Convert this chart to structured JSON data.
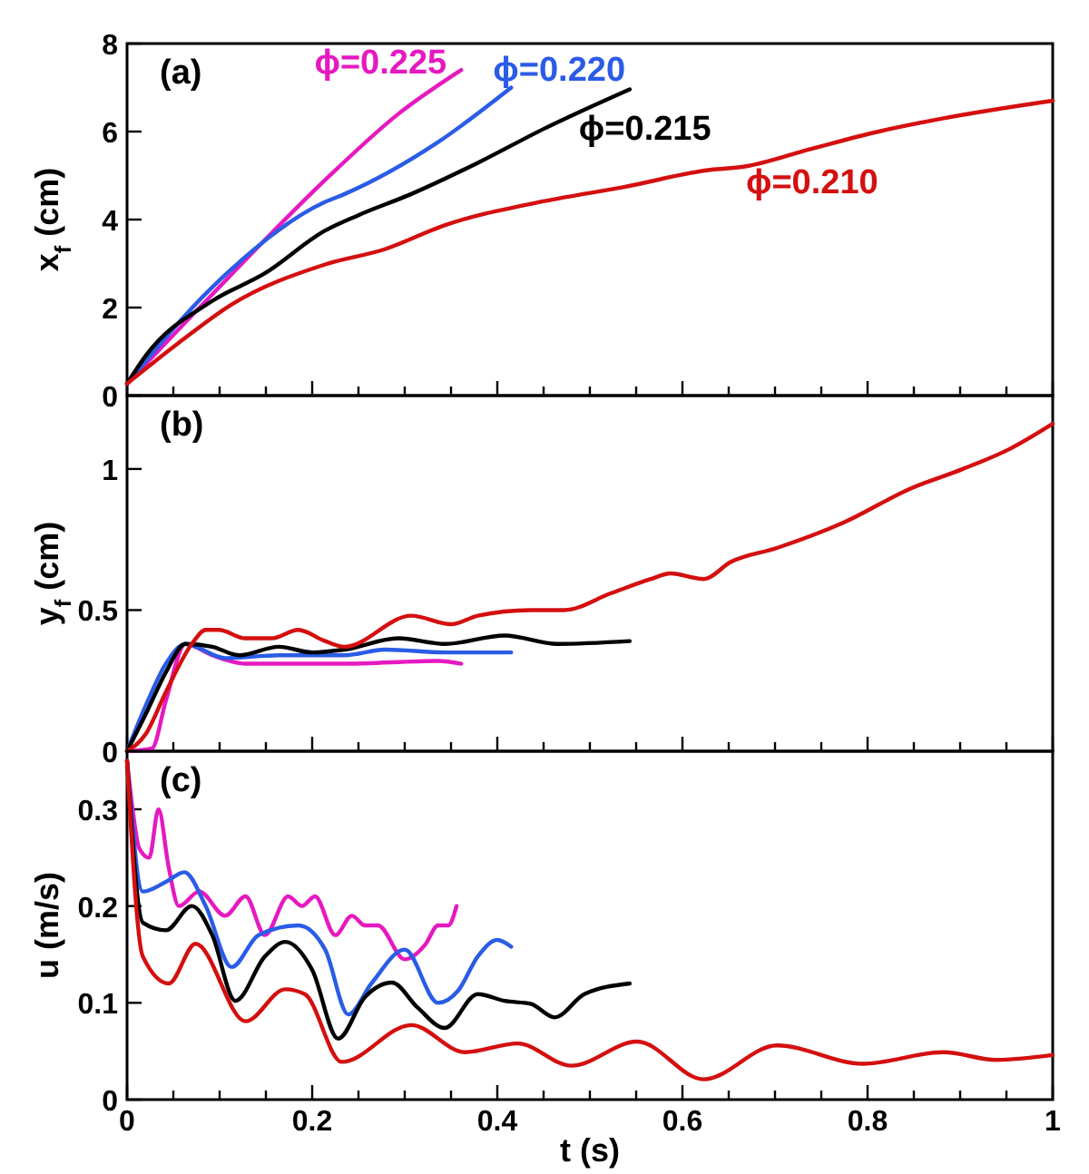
{
  "chart_data": [
    {
      "type": "line",
      "ylabel": "x$_{f}$ (cm)",
      "annotations": [
        "(a)"
      ],
      "xlim": [
        0,
        1
      ],
      "ylim": [
        0,
        8
      ],
      "yticks": [
        0,
        2,
        4,
        6,
        8
      ],
      "xticks": [
        0,
        {
          "value": 0.05,
          "label": null
        },
        {
          "value": 0.1,
          "label": null
        },
        {
          "value": 0.15,
          "label": null
        },
        0.2,
        {
          "value": 0.25,
          "label": null
        },
        {
          "value": 0.3,
          "label": null
        },
        {
          "value": 0.35,
          "label": null
        },
        0.4,
        {
          "value": 0.45,
          "label": null
        },
        {
          "value": 0.5,
          "label": null
        },
        {
          "value": 0.55,
          "label": null
        },
        0.6,
        {
          "value": 0.65,
          "label": null
        },
        {
          "value": 0.7,
          "label": null
        },
        {
          "value": 0.75,
          "label": null
        },
        0.8,
        {
          "value": 0.85,
          "label": null
        },
        {
          "value": 0.9,
          "label": null
        },
        {
          "value": 0.95,
          "label": null
        },
        1
      ],
      "tick_labels": "y",
      "grid": false,
      "marker": "none",
      "line_style": "solid",
      "series": [
        {
          "name": "ϕ=0.225",
          "color": "#e619c0",
          "x": [
            0,
            0.092,
            0.214,
            0.293,
            0.361
          ],
          "values": [
            0.27,
            2.3,
            4.9,
            6.4,
            7.4
          ]
        },
        {
          "name": "ϕ=0.220",
          "color": "#2a5ce6",
          "x": [
            0,
            0.092,
            0.214,
            0.235,
            0.336,
            0.415
          ],
          "values": [
            0.27,
            2.46,
            4.4,
            4.58,
            5.76,
            7.0
          ]
        },
        {
          "name": "ϕ=0.215",
          "color": "#000000",
          "x": [
            0,
            0.02,
            0.092,
            0.149,
            0.214,
            0.25,
            0.307,
            0.379,
            0.451,
            0.543
          ],
          "values": [
            0.27,
            0.9,
            2.15,
            2.78,
            3.75,
            4.1,
            4.58,
            5.29,
            6.07,
            6.96
          ]
        },
        {
          "name": "ϕ=0.210",
          "color": "#d40f0f",
          "x": [
            0,
            0.056,
            0.113,
            0.214,
            0.279,
            0.343,
            0.451,
            0.537,
            0.63,
            0.666,
            0.738,
            0.81,
            0.882,
            1.0
          ],
          "values": [
            0.27,
            1.2,
            2.07,
            2.98,
            3.33,
            3.87,
            4.42,
            4.74,
            5.13,
            5.2,
            5.6,
            5.99,
            6.3,
            6.7
          ]
        }
      ]
    },
    {
      "type": "line",
      "ylabel": "y$_{f}$ (cm)",
      "annotations": [
        "(b)"
      ],
      "xlim": [
        0,
        1
      ],
      "ylim": [
        0,
        1.26
      ],
      "yticks": [
        0,
        0.5,
        1
      ],
      "xticks": [
        0,
        {
          "value": 0.05,
          "label": null
        },
        {
          "value": 0.1,
          "label": null
        },
        {
          "value": 0.15,
          "label": null
        },
        0.2,
        {
          "value": 0.25,
          "label": null
        },
        {
          "value": 0.3,
          "label": null
        },
        {
          "value": 0.35,
          "label": null
        },
        0.4,
        {
          "value": 0.45,
          "label": null
        },
        {
          "value": 0.5,
          "label": null
        },
        {
          "value": 0.55,
          "label": null
        },
        0.6,
        {
          "value": 0.65,
          "label": null
        },
        {
          "value": 0.7,
          "label": null
        },
        {
          "value": 0.75,
          "label": null
        },
        0.8,
        {
          "value": 0.85,
          "label": null
        },
        {
          "value": 0.9,
          "label": null
        },
        {
          "value": 0.95,
          "label": null
        },
        1
      ],
      "tick_labels": "y",
      "grid": false,
      "marker": "none",
      "line_style": "solid",
      "series": [
        {
          "color": "#e619c0",
          "x": [
            0,
            0.027,
            0.042,
            0.063,
            0.092,
            0.128,
            0.235,
            0.336,
            0.361
          ],
          "values": [
            0,
            0.01,
            0.18,
            0.38,
            0.34,
            0.31,
            0.31,
            0.32,
            0.31
          ]
        },
        {
          "color": "#2a5ce6",
          "x": [
            0,
            0.02,
            0.042,
            0.063,
            0.106,
            0.164,
            0.235,
            0.279,
            0.343,
            0.415
          ],
          "values": [
            0,
            0.16,
            0.31,
            0.38,
            0.33,
            0.34,
            0.34,
            0.36,
            0.35,
            0.35
          ]
        },
        {
          "color": "#000000",
          "x": [
            0,
            0.02,
            0.042,
            0.063,
            0.092,
            0.121,
            0.164,
            0.2,
            0.235,
            0.293,
            0.343,
            0.408,
            0.465,
            0.543
          ],
          "values": [
            0,
            0.13,
            0.28,
            0.38,
            0.37,
            0.34,
            0.37,
            0.35,
            0.36,
            0.4,
            0.38,
            0.41,
            0.38,
            0.39
          ]
        },
        {
          "color": "#d40f0f",
          "x": [
            0,
            0.02,
            0.042,
            0.07,
            0.085,
            0.099,
            0.128,
            0.156,
            0.185,
            0.214,
            0.235,
            0.307,
            0.35,
            0.379,
            0.436,
            0.472,
            0.523,
            0.566,
            0.587,
            0.623,
            0.652,
            0.702,
            0.774,
            0.846,
            0.903,
            0.953,
            1.0
          ],
          "values": [
            0,
            0.06,
            0.21,
            0.38,
            0.43,
            0.43,
            0.4,
            0.4,
            0.43,
            0.39,
            0.37,
            0.48,
            0.45,
            0.48,
            0.5,
            0.5,
            0.56,
            0.61,
            0.63,
            0.61,
            0.67,
            0.72,
            0.81,
            0.93,
            1.0,
            1.07,
            1.16
          ]
        }
      ]
    },
    {
      "type": "line",
      "ylabel": "u (m/s)",
      "xlabel": "t (s)",
      "annotations": [
        "(c)"
      ],
      "xlim": [
        0,
        1
      ],
      "ylim": [
        0,
        0.36
      ],
      "yticks": [
        0,
        0.1,
        0.2,
        0.3
      ],
      "xticks": [
        0,
        {
          "value": 0.05,
          "label": null
        },
        {
          "value": 0.1,
          "label": null
        },
        {
          "value": 0.15,
          "label": null
        },
        0.2,
        {
          "value": 0.25,
          "label": null
        },
        {
          "value": 0.3,
          "label": null
        },
        {
          "value": 0.35,
          "label": null
        },
        0.4,
        {
          "value": 0.45,
          "label": null
        },
        {
          "value": 0.5,
          "label": null
        },
        {
          "value": 0.55,
          "label": null
        },
        0.6,
        {
          "value": 0.65,
          "label": null
        },
        {
          "value": 0.7,
          "label": null
        },
        {
          "value": 0.75,
          "label": null
        },
        0.8,
        {
          "value": 0.85,
          "label": null
        },
        {
          "value": 0.9,
          "label": null
        },
        {
          "value": 0.95,
          "label": null
        },
        1
      ],
      "grid": false,
      "marker": "none",
      "line_style": "solid",
      "series": [
        {
          "color": "#e619c0",
          "x": [
            0,
            0.006,
            0.013,
            0.024,
            0.034,
            0.045,
            0.056,
            0.078,
            0.106,
            0.128,
            0.149,
            0.174,
            0.189,
            0.203,
            0.225,
            0.243,
            0.257,
            0.271,
            0.3,
            0.322,
            0.336,
            0.347,
            0.356
          ],
          "values": [
            0.35,
            0.3,
            0.26,
            0.25,
            0.3,
            0.24,
            0.2,
            0.215,
            0.19,
            0.21,
            0.17,
            0.21,
            0.2,
            0.21,
            0.17,
            0.19,
            0.18,
            0.18,
            0.145,
            0.16,
            0.18,
            0.18,
            0.2
          ]
        },
        {
          "color": "#2a5ce6",
          "x": [
            0,
            0.017,
            0.042,
            0.062,
            0.085,
            0.113,
            0.142,
            0.185,
            0.214,
            0.239,
            0.264,
            0.3,
            0.336,
            0.358,
            0.379,
            0.4,
            0.415
          ],
          "values": [
            0.35,
            0.215,
            0.225,
            0.235,
            0.2,
            0.137,
            0.17,
            0.18,
            0.155,
            0.088,
            0.12,
            0.155,
            0.1,
            0.113,
            0.148,
            0.165,
            0.158
          ]
        },
        {
          "color": "#000000",
          "x": [
            0,
            0.017,
            0.042,
            0.07,
            0.092,
            0.117,
            0.149,
            0.171,
            0.2,
            0.228,
            0.257,
            0.286,
            0.314,
            0.343,
            0.379,
            0.408,
            0.436,
            0.462,
            0.494,
            0.543
          ],
          "values": [
            0.35,
            0.183,
            0.175,
            0.2,
            0.17,
            0.102,
            0.148,
            0.163,
            0.134,
            0.063,
            0.106,
            0.121,
            0.095,
            0.074,
            0.109,
            0.102,
            0.099,
            0.085,
            0.109,
            0.12
          ]
        },
        {
          "color": "#d40f0f",
          "x": [
            0,
            0.017,
            0.045,
            0.074,
            0.128,
            0.171,
            0.192,
            0.232,
            0.307,
            0.365,
            0.422,
            0.48,
            0.551,
            0.623,
            0.702,
            0.795,
            0.882,
            0.939,
            1.0
          ],
          "values": [
            0.35,
            0.148,
            0.12,
            0.161,
            0.081,
            0.114,
            0.109,
            0.039,
            0.077,
            0.049,
            0.058,
            0.035,
            0.06,
            0.021,
            0.056,
            0.037,
            0.049,
            0.041,
            0.046
          ]
        }
      ]
    }
  ]
}
